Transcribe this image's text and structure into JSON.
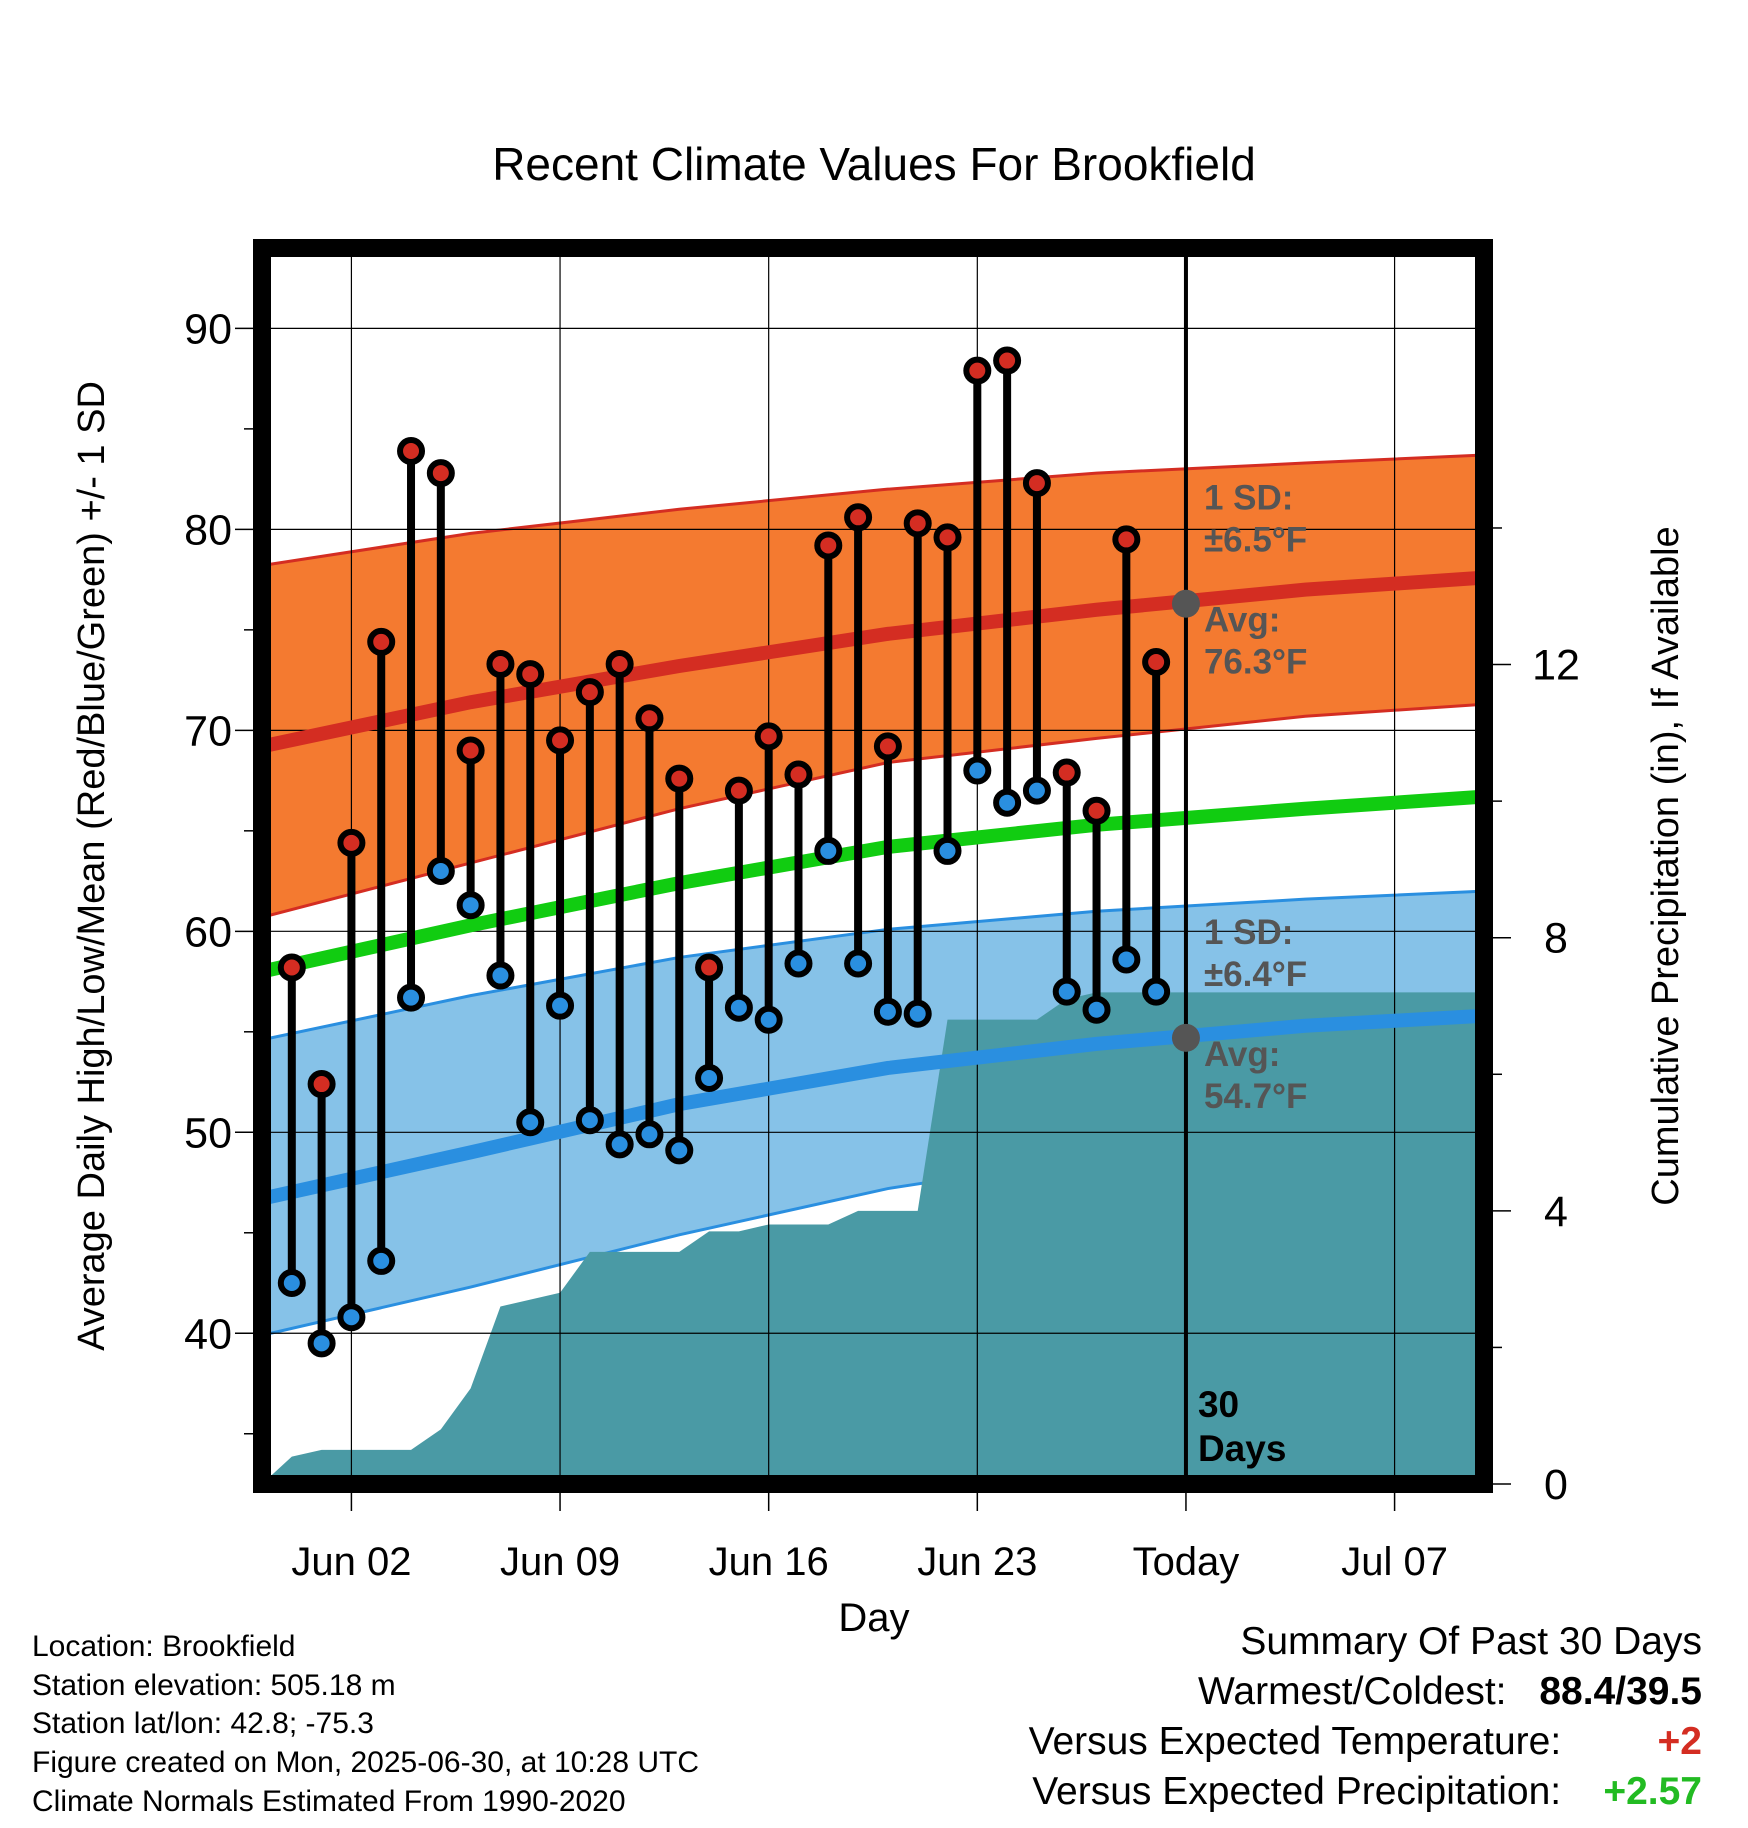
{
  "chart_data": {
    "type": "line",
    "title": "Recent Climate Values For Brookfield",
    "xlabel": "Day",
    "ylabel": "Average Daily High/Low/Mean (Red/Blue/Green) +/- 1 SD",
    "y2label": "Cumulative Precipitation (in), If Available",
    "ylim": [
      32.5,
      94
    ],
    "y2lim": [
      0,
      18.1
    ],
    "yticks": [
      40,
      50,
      60,
      70,
      80,
      90
    ],
    "y2ticks": [
      0,
      4,
      8,
      12
    ],
    "x_start": "2025-05-30",
    "x_end": "2025-07-10",
    "xticks": [
      {
        "date": "2025-06-02",
        "label": "Jun 02"
      },
      {
        "date": "2025-06-09",
        "label": "Jun 09"
      },
      {
        "date": "2025-06-16",
        "label": "Jun 16"
      },
      {
        "date": "2025-06-23",
        "label": "Jun 23"
      },
      {
        "date": "2025-06-30",
        "label": "Today"
      },
      {
        "date": "2025-07-07",
        "label": "Jul 07"
      }
    ],
    "today": "2025-06-30",
    "today_label": "30 Days",
    "grid": true,
    "normals": {
      "dates": [
        "2025-05-30",
        "2025-06-06",
        "2025-06-13",
        "2025-06-20",
        "2025-06-27",
        "2025-07-04",
        "2025-07-10"
      ],
      "high_avg": [
        69.2,
        71.4,
        73.2,
        74.8,
        76.0,
        77.0,
        77.6
      ],
      "high_upper": [
        78.2,
        79.8,
        81.0,
        82.0,
        82.8,
        83.3,
        83.7
      ],
      "high_lower": [
        60.7,
        63.4,
        66.1,
        68.4,
        69.6,
        70.7,
        71.3
      ],
      "mean_avg": [
        58.0,
        60.3,
        62.4,
        64.2,
        65.3,
        66.1,
        66.7
      ],
      "low_avg": [
        46.7,
        49.0,
        51.4,
        53.2,
        54.4,
        55.3,
        55.8
      ],
      "low_upper": [
        54.6,
        56.8,
        58.7,
        60.1,
        61.0,
        61.6,
        62.0
      ],
      "low_lower": [
        39.9,
        42.3,
        44.9,
        47.2,
        48.8,
        49.6,
        50.1
      ]
    },
    "series": [
      {
        "name": "High",
        "color": "#d42d22",
        "dates": [
          "2025-05-31",
          "2025-06-01",
          "2025-06-02",
          "2025-06-03",
          "2025-06-04",
          "2025-06-05",
          "2025-06-06",
          "2025-06-07",
          "2025-06-08",
          "2025-06-09",
          "2025-06-10",
          "2025-06-11",
          "2025-06-12",
          "2025-06-13",
          "2025-06-14",
          "2025-06-15",
          "2025-06-16",
          "2025-06-17",
          "2025-06-18",
          "2025-06-19",
          "2025-06-20",
          "2025-06-21",
          "2025-06-22",
          "2025-06-23",
          "2025-06-24",
          "2025-06-25",
          "2025-06-26",
          "2025-06-27",
          "2025-06-28",
          "2025-06-29"
        ],
        "values": [
          58.2,
          52.4,
          64.4,
          74.4,
          83.9,
          82.8,
          69.0,
          73.3,
          72.8,
          69.5,
          71.9,
          73.3,
          70.6,
          67.6,
          58.2,
          67.0,
          69.7,
          67.8,
          79.2,
          80.6,
          69.2,
          80.3,
          79.6,
          87.9,
          88.4,
          82.3,
          67.9,
          66.0,
          79.5,
          73.4
        ]
      },
      {
        "name": "Low",
        "color": "#2a8fe0",
        "dates": [
          "2025-05-31",
          "2025-06-01",
          "2025-06-02",
          "2025-06-03",
          "2025-06-04",
          "2025-06-05",
          "2025-06-06",
          "2025-06-07",
          "2025-06-08",
          "2025-06-09",
          "2025-06-10",
          "2025-06-11",
          "2025-06-12",
          "2025-06-13",
          "2025-06-14",
          "2025-06-15",
          "2025-06-16",
          "2025-06-17",
          "2025-06-18",
          "2025-06-19",
          "2025-06-20",
          "2025-06-21",
          "2025-06-22",
          "2025-06-23",
          "2025-06-24",
          "2025-06-25",
          "2025-06-26",
          "2025-06-27",
          "2025-06-28",
          "2025-06-29"
        ],
        "values": [
          42.5,
          39.5,
          40.8,
          43.6,
          56.7,
          63.0,
          61.3,
          57.8,
          50.5,
          56.3,
          50.6,
          49.4,
          49.9,
          49.1,
          52.7,
          56.2,
          55.6,
          58.4,
          64.0,
          58.4,
          56.0,
          55.9,
          64.0,
          68.0,
          66.4,
          67.0,
          57.0,
          56.1,
          58.6,
          57.0
        ]
      },
      {
        "name": "Precipitation",
        "color": "#4a9aa5",
        "dates": [
          "2025-05-30",
          "2025-05-31",
          "2025-06-01",
          "2025-06-02",
          "2025-06-03",
          "2025-06-04",
          "2025-06-05",
          "2025-06-06",
          "2025-06-07",
          "2025-06-08",
          "2025-06-09",
          "2025-06-10",
          "2025-06-11",
          "2025-06-12",
          "2025-06-13",
          "2025-06-14",
          "2025-06-15",
          "2025-06-16",
          "2025-06-17",
          "2025-06-18",
          "2025-06-19",
          "2025-06-20",
          "2025-06-21",
          "2025-06-22",
          "2025-06-23",
          "2025-06-24",
          "2025-06-25",
          "2025-06-26",
          "2025-06-27",
          "2025-06-28",
          "2025-06-29",
          "2025-06-30",
          "2025-07-10"
        ],
        "values": [
          0.0,
          0.4,
          0.5,
          0.5,
          0.5,
          0.5,
          0.8,
          1.4,
          2.6,
          2.7,
          2.8,
          3.4,
          3.4,
          3.4,
          3.4,
          3.7,
          3.7,
          3.8,
          3.8,
          3.8,
          4.0,
          4.0,
          4.0,
          6.8,
          6.8,
          6.8,
          6.8,
          7.1,
          7.2,
          7.2,
          7.2,
          7.2,
          7.2
        ]
      }
    ],
    "annotations": [
      {
        "group": "high",
        "sd_label": "1 SD:",
        "sd_value": "±6.5°F",
        "avg_label": "Avg:",
        "avg_value": "76.3°F",
        "marker": 76.3
      },
      {
        "group": "low",
        "sd_label": "1 SD:",
        "sd_value": "±6.4°F",
        "avg_label": "Avg:",
        "avg_value": "54.7°F",
        "marker": 54.7
      }
    ]
  },
  "info": {
    "location": "Location: Brookfield",
    "elevation": "Station elevation: 505.18 m",
    "latlon": "Station lat/lon: 42.8; -75.3",
    "created": "Figure created on Mon, 2025-06-30, at 10:28 UTC",
    "normals": "Climate Normals Estimated From 1990-2020"
  },
  "summary": {
    "title": "Summary Of Past 30 Days",
    "warm_cold_label": "Warmest/Coldest:",
    "warm_cold_value": "88.4/39.5",
    "temp_label": "Versus Expected Temperature:",
    "temp_value": "+2",
    "temp_color": "#d42d22",
    "precip_label": "Versus Expected Precipitation:",
    "precip_value": "+2.57",
    "precip_color": "#22bb22"
  }
}
